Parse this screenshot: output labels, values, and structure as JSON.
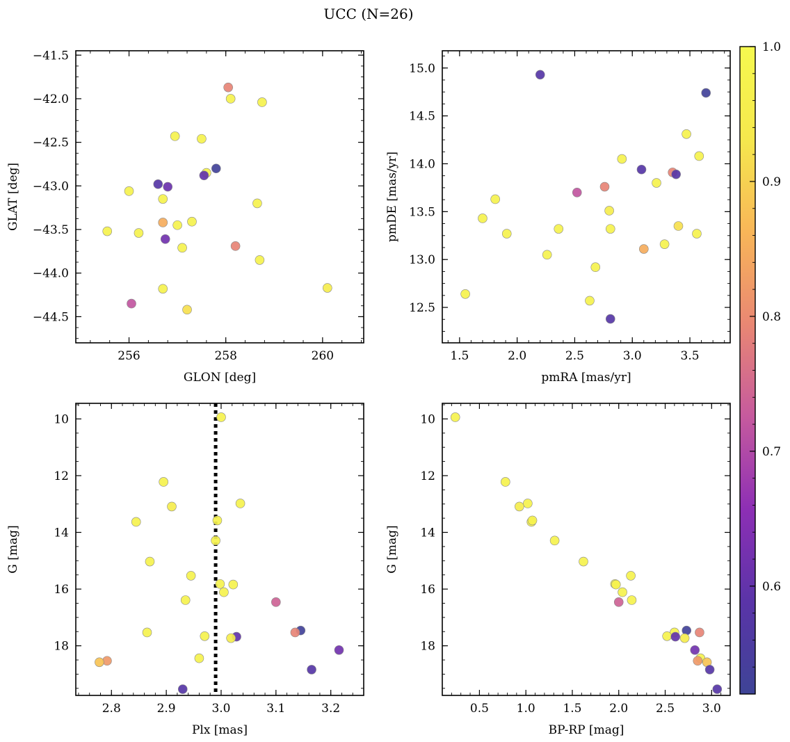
{
  "title": "UCC (N=26)",
  "colorbar": {
    "range": [
      0.52,
      1.0
    ],
    "ticks": [
      "0.6",
      "0.7",
      "0.8",
      "0.9",
      "1.0"
    ],
    "tick_values": [
      0.6,
      0.7,
      0.8,
      0.9,
      1.0
    ],
    "colormap": [
      "#3e4496",
      "#5a34a8",
      "#8d2fb5",
      "#c65a9e",
      "#e98773",
      "#f8b658",
      "#f5e84d",
      "#f5f94f"
    ]
  },
  "chart_data": [
    {
      "type": "scatter",
      "name": "GLON vs GLAT",
      "xlabel": "GLON [deg]",
      "ylabel": "GLAT [deg]",
      "xlim": [
        254.9,
        260.85
      ],
      "ylim": [
        -44.8,
        -41.45
      ],
      "xticks": [
        256,
        258,
        260
      ],
      "xtick_labels": [
        "256",
        "258",
        "260"
      ],
      "yticks": [
        -44.5,
        -44.0,
        -43.5,
        -43.0,
        -42.5,
        -42.0,
        -41.5
      ],
      "ytick_labels": [
        "−44.5",
        "−44.0",
        "−43.5",
        "−43.0",
        "−42.5",
        "−42.0",
        "−41.5"
      ],
      "points": [
        {
          "x": 258.05,
          "y": -41.87,
          "c": 0.79
        },
        {
          "x": 258.1,
          "y": -42.0,
          "c": 0.97
        },
        {
          "x": 258.75,
          "y": -42.04,
          "c": 0.97
        },
        {
          "x": 256.95,
          "y": -42.43,
          "c": 0.97
        },
        {
          "x": 257.5,
          "y": -42.46,
          "c": 0.97
        },
        {
          "x": 257.8,
          "y": -42.8,
          "c": 0.53
        },
        {
          "x": 257.6,
          "y": -42.85,
          "c": 0.97
        },
        {
          "x": 257.55,
          "y": -42.88,
          "c": 0.6
        },
        {
          "x": 256.6,
          "y": -42.98,
          "c": 0.58
        },
        {
          "x": 256.8,
          "y": -43.01,
          "c": 0.61
        },
        {
          "x": 256.0,
          "y": -43.06,
          "c": 0.97
        },
        {
          "x": 256.7,
          "y": -43.15,
          "c": 0.97
        },
        {
          "x": 258.65,
          "y": -43.2,
          "c": 0.97
        },
        {
          "x": 257.3,
          "y": -43.41,
          "c": 0.97
        },
        {
          "x": 256.7,
          "y": -43.42,
          "c": 0.85
        },
        {
          "x": 257.0,
          "y": -43.45,
          "c": 0.97
        },
        {
          "x": 255.55,
          "y": -43.52,
          "c": 0.97
        },
        {
          "x": 256.2,
          "y": -43.54,
          "c": 0.97
        },
        {
          "x": 256.75,
          "y": -43.61,
          "c": 0.62
        },
        {
          "x": 258.2,
          "y": -43.69,
          "c": 0.79
        },
        {
          "x": 257.1,
          "y": -43.71,
          "c": 0.97
        },
        {
          "x": 258.7,
          "y": -43.85,
          "c": 0.97
        },
        {
          "x": 260.1,
          "y": -44.17,
          "c": 0.95
        },
        {
          "x": 256.7,
          "y": -44.18,
          "c": 0.97
        },
        {
          "x": 256.05,
          "y": -44.35,
          "c": 0.72
        },
        {
          "x": 257.2,
          "y": -44.42,
          "c": 0.92
        }
      ]
    },
    {
      "type": "scatter",
      "name": "pmRA vs pmDE",
      "xlabel": "pmRA [mas/yr]",
      "ylabel": "pmDE [mas/yr]",
      "xlim": [
        1.35,
        3.85
      ],
      "ylim": [
        12.13,
        15.18
      ],
      "xticks": [
        1.5,
        2.0,
        2.5,
        3.0,
        3.5
      ],
      "xtick_labels": [
        "1.5",
        "2.0",
        "2.5",
        "3.0",
        "3.5"
      ],
      "yticks": [
        12.5,
        13.0,
        13.5,
        14.0,
        14.5,
        15.0
      ],
      "ytick_labels": [
        "12.5",
        "13.0",
        "13.5",
        "14.0",
        "14.5",
        "15.0"
      ],
      "points": [
        {
          "x": 2.2,
          "y": 14.93,
          "c": 0.58
        },
        {
          "x": 3.64,
          "y": 14.74,
          "c": 0.53
        },
        {
          "x": 3.47,
          "y": 14.31,
          "c": 0.97
        },
        {
          "x": 3.58,
          "y": 14.08,
          "c": 0.97
        },
        {
          "x": 2.91,
          "y": 14.05,
          "c": 0.97
        },
        {
          "x": 3.08,
          "y": 13.94,
          "c": 0.58
        },
        {
          "x": 3.35,
          "y": 13.91,
          "c": 0.79
        },
        {
          "x": 3.38,
          "y": 13.89,
          "c": 0.58
        },
        {
          "x": 3.21,
          "y": 13.8,
          "c": 0.97
        },
        {
          "x": 2.76,
          "y": 13.76,
          "c": 0.79
        },
        {
          "x": 2.52,
          "y": 13.7,
          "c": 0.72
        },
        {
          "x": 1.81,
          "y": 13.63,
          "c": 0.97
        },
        {
          "x": 2.8,
          "y": 13.51,
          "c": 0.95
        },
        {
          "x": 1.7,
          "y": 13.43,
          "c": 0.97
        },
        {
          "x": 3.4,
          "y": 13.35,
          "c": 0.92
        },
        {
          "x": 2.36,
          "y": 13.32,
          "c": 0.97
        },
        {
          "x": 2.81,
          "y": 13.32,
          "c": 0.97
        },
        {
          "x": 1.91,
          "y": 13.27,
          "c": 0.97
        },
        {
          "x": 3.56,
          "y": 13.27,
          "c": 0.97
        },
        {
          "x": 3.28,
          "y": 13.16,
          "c": 0.97
        },
        {
          "x": 3.1,
          "y": 13.11,
          "c": 0.85
        },
        {
          "x": 2.26,
          "y": 13.05,
          "c": 0.97
        },
        {
          "x": 2.68,
          "y": 12.92,
          "c": 0.97
        },
        {
          "x": 1.55,
          "y": 12.64,
          "c": 0.97
        },
        {
          "x": 2.63,
          "y": 12.57,
          "c": 0.97
        },
        {
          "x": 2.81,
          "y": 12.38,
          "c": 0.58
        }
      ]
    },
    {
      "type": "scatter",
      "name": "Plx vs G",
      "xlabel": "Plx [mas]",
      "ylabel": "G [mag]",
      "xlim": [
        2.735,
        3.26
      ],
      "ylim": [
        19.75,
        9.45
      ],
      "y_inverted": true,
      "vline_x": 2.99,
      "xticks": [
        2.8,
        2.9,
        3.0,
        3.1,
        3.2
      ],
      "xtick_labels": [
        "2.8",
        "2.9",
        "3.0",
        "3.1",
        "3.2"
      ],
      "yticks": [
        10,
        12,
        14,
        16,
        18
      ],
      "ytick_labels": [
        "10",
        "12",
        "14",
        "16",
        "18"
      ],
      "points": [
        {
          "x": 3.0,
          "y": 9.94,
          "c": 0.97
        },
        {
          "x": 2.895,
          "y": 12.22,
          "c": 0.97
        },
        {
          "x": 3.035,
          "y": 12.98,
          "c": 0.97
        },
        {
          "x": 2.91,
          "y": 13.09,
          "c": 0.95
        },
        {
          "x": 2.845,
          "y": 13.63,
          "c": 0.97
        },
        {
          "x": 2.993,
          "y": 13.58,
          "c": 0.97
        },
        {
          "x": 2.99,
          "y": 14.29,
          "c": 0.97
        },
        {
          "x": 2.87,
          "y": 15.03,
          "c": 0.97
        },
        {
          "x": 2.945,
          "y": 15.53,
          "c": 0.97
        },
        {
          "x": 2.998,
          "y": 15.82,
          "c": 0.97
        },
        {
          "x": 3.022,
          "y": 15.84,
          "c": 0.97
        },
        {
          "x": 3.005,
          "y": 16.11,
          "c": 0.97
        },
        {
          "x": 2.935,
          "y": 16.39,
          "c": 0.97
        },
        {
          "x": 3.1,
          "y": 16.46,
          "c": 0.74
        },
        {
          "x": 3.145,
          "y": 17.46,
          "c": 0.53
        },
        {
          "x": 2.865,
          "y": 17.53,
          "c": 0.97
        },
        {
          "x": 3.135,
          "y": 17.53,
          "c": 0.79
        },
        {
          "x": 2.97,
          "y": 17.66,
          "c": 0.97
        },
        {
          "x": 3.028,
          "y": 17.68,
          "c": 0.6
        },
        {
          "x": 3.018,
          "y": 17.73,
          "c": 0.95
        },
        {
          "x": 3.215,
          "y": 18.15,
          "c": 0.62
        },
        {
          "x": 2.96,
          "y": 18.44,
          "c": 0.97
        },
        {
          "x": 2.792,
          "y": 18.53,
          "c": 0.82
        },
        {
          "x": 2.778,
          "y": 18.58,
          "c": 0.88
        },
        {
          "x": 3.165,
          "y": 18.84,
          "c": 0.58
        },
        {
          "x": 2.93,
          "y": 19.53,
          "c": 0.58
        }
      ]
    },
    {
      "type": "scatter",
      "name": "BP-RP vs G",
      "xlabel": "BP-RP [mag]",
      "ylabel": "G [mag]",
      "xlim": [
        0.1,
        3.2
      ],
      "ylim": [
        19.75,
        9.45
      ],
      "y_inverted": true,
      "xticks": [
        0.5,
        1.0,
        1.5,
        2.0,
        2.5,
        3.0
      ],
      "xtick_labels": [
        "0.5",
        "1.0",
        "1.5",
        "2.0",
        "2.5",
        "3.0"
      ],
      "yticks": [
        10,
        12,
        14,
        16,
        18
      ],
      "ytick_labels": [
        "10",
        "12",
        "14",
        "16",
        "18"
      ],
      "points": [
        {
          "x": 0.24,
          "y": 9.94,
          "c": 0.97
        },
        {
          "x": 0.78,
          "y": 12.22,
          "c": 0.97
        },
        {
          "x": 1.02,
          "y": 12.98,
          "c": 0.97
        },
        {
          "x": 0.93,
          "y": 13.09,
          "c": 0.95
        },
        {
          "x": 1.06,
          "y": 13.63,
          "c": 0.97
        },
        {
          "x": 1.07,
          "y": 13.58,
          "c": 0.97
        },
        {
          "x": 1.31,
          "y": 14.29,
          "c": 0.97
        },
        {
          "x": 1.62,
          "y": 15.03,
          "c": 0.97
        },
        {
          "x": 2.13,
          "y": 15.53,
          "c": 0.97
        },
        {
          "x": 1.96,
          "y": 15.82,
          "c": 0.97
        },
        {
          "x": 1.97,
          "y": 15.84,
          "c": 0.97
        },
        {
          "x": 2.04,
          "y": 16.11,
          "c": 0.97
        },
        {
          "x": 2.14,
          "y": 16.39,
          "c": 0.97
        },
        {
          "x": 2.0,
          "y": 16.46,
          "c": 0.74
        },
        {
          "x": 2.73,
          "y": 17.46,
          "c": 0.53
        },
        {
          "x": 2.6,
          "y": 17.53,
          "c": 0.97
        },
        {
          "x": 2.87,
          "y": 17.53,
          "c": 0.79
        },
        {
          "x": 2.52,
          "y": 17.66,
          "c": 0.97
        },
        {
          "x": 2.61,
          "y": 17.68,
          "c": 0.6
        },
        {
          "x": 2.71,
          "y": 17.73,
          "c": 0.95
        },
        {
          "x": 2.82,
          "y": 18.15,
          "c": 0.62
        },
        {
          "x": 2.88,
          "y": 18.44,
          "c": 0.97
        },
        {
          "x": 2.85,
          "y": 18.53,
          "c": 0.82
        },
        {
          "x": 2.95,
          "y": 18.58,
          "c": 0.88
        },
        {
          "x": 2.98,
          "y": 18.84,
          "c": 0.58
        },
        {
          "x": 3.06,
          "y": 19.53,
          "c": 0.58
        }
      ]
    }
  ]
}
